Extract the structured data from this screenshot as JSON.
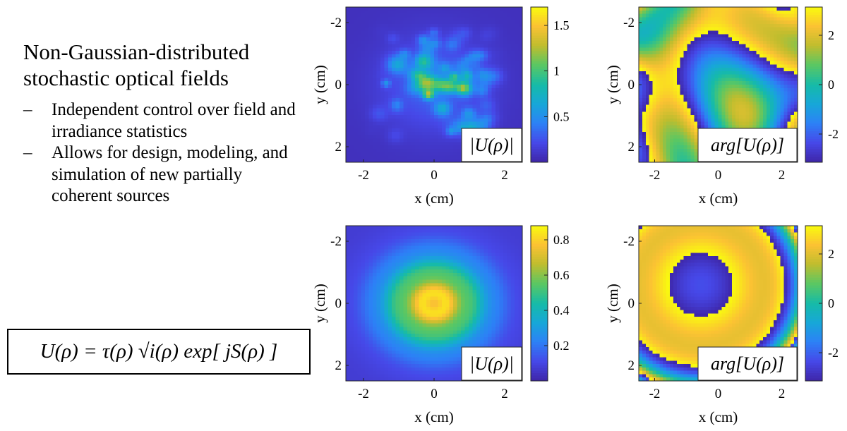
{
  "slide": {
    "heading": "Non-Gaussian-distributed\nstochastic optical fields",
    "bullets": [
      "Independent control over field and irradiance statistics",
      "Allows for design, modeling, and simulation of new partially coherent sources"
    ],
    "bullet_marker": "–",
    "equation": "U(ρ) = τ(ρ) √i(ρ) exp[ jS(ρ) ]"
  },
  "chart_data": [
    {
      "type": "heatmap",
      "panel": "top-left",
      "quantity_label": "|U(ρ)|",
      "xlabel": "x (cm)",
      "ylabel": "y (cm)",
      "xlim": [
        -2.5,
        2.5
      ],
      "ylim": [
        2.5,
        -2.5
      ],
      "xticks": [
        "-2",
        "0",
        "2"
      ],
      "yticks": [
        "-2",
        "0",
        "2"
      ],
      "colorbar": {
        "range": [
          0,
          1.7
        ],
        "ticks": [
          "0.5",
          "1",
          "1.5"
        ]
      },
      "colormap": "parula",
      "pattern": "speckle"
    },
    {
      "type": "heatmap",
      "panel": "top-right",
      "quantity_label": "arg[U(ρ)]",
      "xlabel": "x (cm)",
      "ylabel": "y (cm)",
      "xlim": [
        -2.5,
        2.5
      ],
      "ylim": [
        2.5,
        -2.5
      ],
      "xticks": [
        "-2",
        "0",
        "2"
      ],
      "yticks": [
        "-2",
        "0",
        "2"
      ],
      "colorbar": {
        "range": [
          -3.14,
          3.14
        ],
        "ticks": [
          "-2",
          "0",
          "2"
        ]
      },
      "colormap": "parula",
      "pattern": "smooth-random-phase"
    },
    {
      "type": "heatmap",
      "panel": "bottom-left",
      "quantity_label": "|U(ρ)|",
      "xlabel": "x (cm)",
      "ylabel": "y (cm)",
      "xlim": [
        -2.5,
        2.5
      ],
      "ylim": [
        2.5,
        -2.5
      ],
      "xticks": [
        "-2",
        "0",
        "2"
      ],
      "yticks": [
        "-2",
        "0",
        "2"
      ],
      "colorbar": {
        "range": [
          0,
          0.88
        ],
        "ticks": [
          "0.2",
          "0.4",
          "0.6",
          "0.8"
        ]
      },
      "colormap": "parula",
      "pattern": "gaussian-ring"
    },
    {
      "type": "heatmap",
      "panel": "bottom-right",
      "quantity_label": "arg[U(ρ)]",
      "xlabel": "x (cm)",
      "ylabel": "y (cm)",
      "xlim": [
        -2.5,
        2.5
      ],
      "ylim": [
        2.5,
        -2.5
      ],
      "xticks": [
        "-2",
        "0",
        "2"
      ],
      "yticks": [
        "-2",
        "0",
        "2"
      ],
      "colorbar": {
        "range": [
          -3.14,
          3.14
        ],
        "ticks": [
          "-2",
          "0",
          "2"
        ]
      },
      "colormap": "parula",
      "pattern": "quadratic-phase-rings"
    }
  ]
}
